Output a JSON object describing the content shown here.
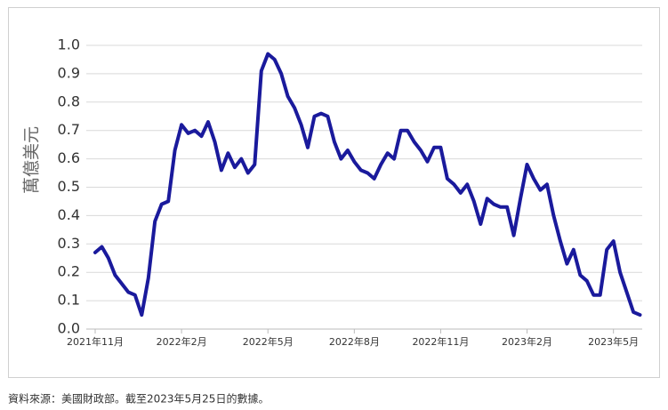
{
  "chart_data": {
    "type": "line",
    "y_label": "萬億美元",
    "footnote": "資料來源：美國財政部。截至2023年5月25日的數據。",
    "categories": [
      "2021年11月",
      null,
      null,
      null,
      null,
      null,
      null,
      null,
      null,
      null,
      null,
      null,
      null,
      "2022年2月",
      null,
      null,
      null,
      null,
      null,
      null,
      null,
      null,
      null,
      null,
      null,
      null,
      "2022年5月",
      null,
      null,
      null,
      null,
      null,
      null,
      null,
      null,
      null,
      null,
      null,
      null,
      "2022年8月",
      null,
      null,
      null,
      null,
      null,
      null,
      null,
      null,
      null,
      null,
      null,
      null,
      "2022年11月",
      null,
      null,
      null,
      null,
      null,
      null,
      null,
      null,
      null,
      null,
      null,
      null,
      "2023年2月",
      null,
      null,
      null,
      null,
      null,
      null,
      null,
      null,
      null,
      null,
      null,
      null,
      "2023年5月",
      null,
      null,
      null,
      null
    ],
    "series": [
      {
        "color": "#1a1a9c",
        "values": [
          0.27,
          0.29,
          0.25,
          0.19,
          0.16,
          0.13,
          0.12,
          0.05,
          0.18,
          0.38,
          0.44,
          0.45,
          0.63,
          0.72,
          0.69,
          0.7,
          0.68,
          0.73,
          0.66,
          0.56,
          0.62,
          0.57,
          0.6,
          0.55,
          0.58,
          0.91,
          0.97,
          0.95,
          0.9,
          0.82,
          0.78,
          0.72,
          0.64,
          0.75,
          0.76,
          0.75,
          0.66,
          0.6,
          0.63,
          0.59,
          0.56,
          0.55,
          0.53,
          0.58,
          0.62,
          0.6,
          0.7,
          0.7,
          0.66,
          0.63,
          0.59,
          0.64,
          0.64,
          0.53,
          0.51,
          0.48,
          0.51,
          0.45,
          0.37,
          0.46,
          0.44,
          0.43,
          0.43,
          0.33,
          0.46,
          0.58,
          0.53,
          0.49,
          0.51,
          0.4,
          0.31,
          0.23,
          0.28,
          0.19,
          0.17,
          0.12,
          0.12,
          0.28,
          0.31,
          0.2,
          0.13,
          0.06,
          0.05
        ]
      }
    ],
    "ylim": [
      0,
      1
    ],
    "yticks": [
      {
        "value": 0,
        "label": "0.0"
      },
      0.1,
      0.2,
      0.3,
      0.4,
      0.5,
      0.6,
      0.7,
      0.8,
      0.9,
      {
        "value": 1,
        "label": "1.0"
      }
    ],
    "grid": true
  }
}
